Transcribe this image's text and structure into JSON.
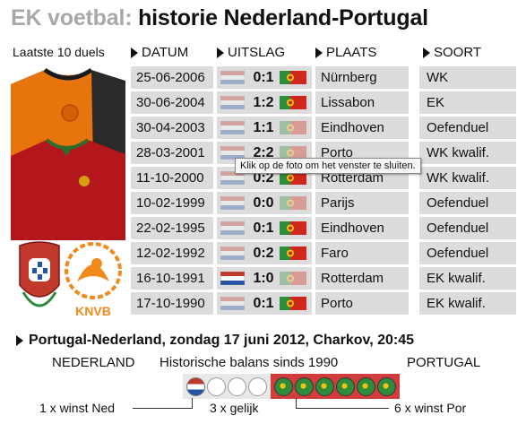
{
  "title": {
    "prefix": "EK voetbal:",
    "main": "historie Nederland-Portugal"
  },
  "subtitle": "Laatste 10 duels",
  "columns": {
    "date": "DATUM",
    "result": "UITSLAG",
    "place": "PLAATS",
    "kind": "SOORT"
  },
  "rows": [
    {
      "date": "25-06-2006",
      "score": "0:1",
      "place": "Nürnberg",
      "kind": "WK",
      "nl_win": false
    },
    {
      "date": "30-06-2004",
      "score": "1:2",
      "place": "Lissabon",
      "kind": "EK",
      "nl_win": false
    },
    {
      "date": "30-04-2003",
      "score": "1:1",
      "place": "Eindhoven",
      "kind": "Oefenduel",
      "nl_win": false
    },
    {
      "date": "28-03-2001",
      "score": "2:2",
      "place": "Porto",
      "kind": "WK kwalif.",
      "nl_win": false
    },
    {
      "date": "11-10-2000",
      "score": "0:2",
      "place": "Rotterdam",
      "kind": "WK kwalif.",
      "nl_win": false
    },
    {
      "date": "10-02-1999",
      "score": "0:0",
      "place": "Parijs",
      "kind": "Oefenduel",
      "nl_win": false
    },
    {
      "date": "22-02-1995",
      "score": "0:1",
      "place": "Eindhoven",
      "kind": "Oefenduel",
      "nl_win": false
    },
    {
      "date": "12-02-1992",
      "score": "0:2",
      "place": "Faro",
      "kind": "Oefenduel",
      "nl_win": false
    },
    {
      "date": "16-10-1991",
      "score": "1:0",
      "place": "Rotterdam",
      "kind": "EK kwalif.",
      "nl_win": true
    },
    {
      "date": "17-10-1990",
      "score": "0:1",
      "place": "Porto",
      "kind": "EK kwalif.",
      "nl_win": false
    }
  ],
  "tooltip": "Klik op de foto om het venster te sluiten.",
  "match": "Portugal-Nederland, zondag 17 juni 2012, Charkov, 20:45",
  "balance": {
    "left_label": "NEDERLAND",
    "center_label": "Historische balans sinds 1990",
    "right_label": "PORTUGAL",
    "nl_wins": 1,
    "draws": 3,
    "pt_wins": 6,
    "legend_nl": "1 x winst Ned",
    "legend_draw": "3 x gelijk",
    "legend_pt": "6 x winst Por"
  },
  "logos": {
    "knvb_text": "KNVB"
  },
  "colors": {
    "nl_red": "#c0392b",
    "nl_blue": "#2255a4",
    "pt_green": "#2e8b3b",
    "pt_red": "#d13d3d",
    "cell_grey": "#dcdcdc"
  }
}
